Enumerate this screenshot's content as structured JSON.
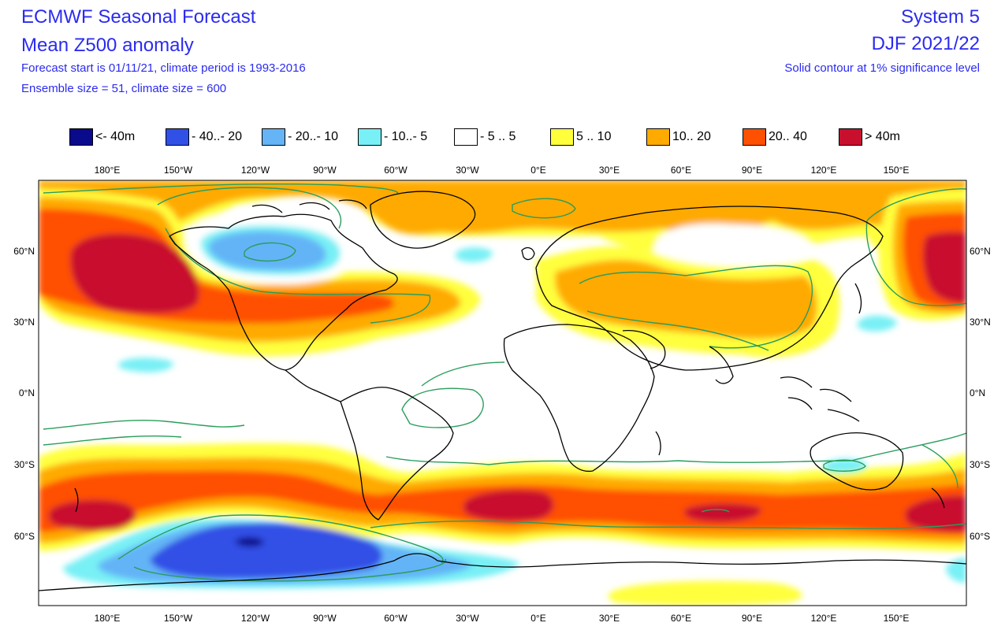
{
  "header": {
    "title": "ECMWF Seasonal Forecast",
    "subtitle": "Mean Z500 anomaly",
    "info_line1": "Forecast start is 01/11/21, climate period is 1993-2016",
    "info_line2": "Ensemble size = 51, climate size = 600",
    "system": "System 5",
    "season": "DJF 2021/22",
    "significance_note": "Solid contour at 1% significance level"
  },
  "legend": [
    {
      "label": "<- 40m",
      "color": "#0a0a8c"
    },
    {
      "label": "- 40..- 20",
      "color": "#3050e6"
    },
    {
      "label": "- 20..- 10",
      "color": "#64b4f6"
    },
    {
      "label": "- 10..- 5",
      "color": "#78f0f5"
    },
    {
      "label": "- 5 .. 5",
      "color": "#ffffff"
    },
    {
      "label": "5 .. 10",
      "color": "#ffff3c"
    },
    {
      "label": "10.. 20",
      "color": "#ffaa00"
    },
    {
      "label": "20.. 40",
      "color": "#ff5000"
    },
    {
      "label": ">  40m",
      "color": "#c8102e"
    }
  ],
  "axes": {
    "lon_labels": [
      "180°E",
      "150°W",
      "120°W",
      "90°W",
      "60°W",
      "30°W",
      "0°E",
      "30°E",
      "60°E",
      "90°E",
      "120°E",
      "150°E"
    ],
    "lat_labels": [
      "60°N",
      "30°N",
      "0°N",
      "30°S",
      "60°S"
    ]
  },
  "contour_color": "#2a9d5c"
}
